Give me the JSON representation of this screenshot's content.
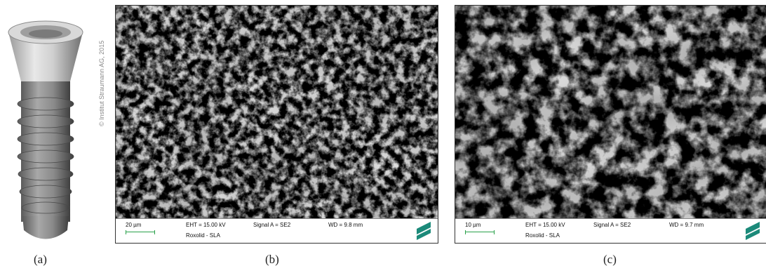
{
  "panels": {
    "a": {
      "label": "(a)",
      "copyright": "© Institut Straumann AG, 2015"
    },
    "b": {
      "label": "(b)",
      "scale": "20 µm",
      "eht": "EHT = 15.00 kV",
      "signal": "Signal A = SE2",
      "wd": "WD =  9.8 mm",
      "sample": "Roxolid - SLA"
    },
    "c": {
      "label": "(c)",
      "scale": "10 µm",
      "eht": "EHT = 15.00 kV",
      "signal": "Signal A = SE2",
      "wd": "WD =  9.7 mm",
      "sample": "Roxolid - SLA"
    }
  },
  "colors": {
    "scalebar": "#2aa14a",
    "logo": "#1c8a7a"
  }
}
